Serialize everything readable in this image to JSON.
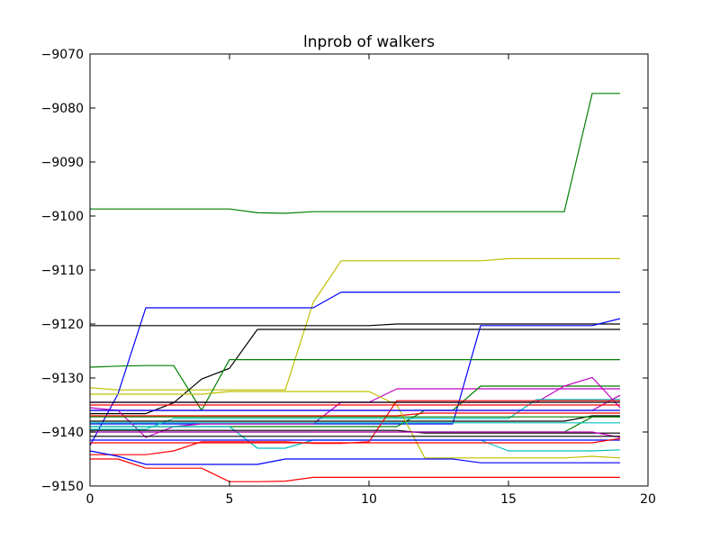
{
  "chart_data": {
    "type": "line",
    "title": "lnprob of walkers",
    "xlabel": "",
    "ylabel": "",
    "xlim": [
      0,
      20
    ],
    "ylim": [
      -9150,
      -9070
    ],
    "xticks": [
      0,
      5,
      10,
      15,
      20
    ],
    "yticks": [
      -9150,
      -9140,
      -9130,
      -9120,
      -9110,
      -9100,
      -9090,
      -9080,
      -9070
    ],
    "xtick_labels": [
      "0",
      "5",
      "10",
      "15",
      "20"
    ],
    "ytick_labels": [
      "−9150",
      "−9140",
      "−9130",
      "−9120",
      "−9110",
      "−9100",
      "−9090",
      "−9080",
      "−9070"
    ],
    "grid": false,
    "legend": "none",
    "x": [
      0,
      1,
      2,
      3,
      4,
      5,
      6,
      7,
      8,
      9,
      10,
      11,
      12,
      13,
      14,
      15,
      16,
      17,
      18,
      19
    ],
    "series": [
      {
        "color": "#008000",
        "values": [
          -9098.7,
          -9098.7,
          -9098.7,
          -9098.7,
          -9098.7,
          -9098.7,
          -9099.4,
          -9099.5,
          -9099.2,
          -9099.2,
          -9099.2,
          -9099.2,
          -9099.2,
          -9099.2,
          -9099.2,
          -9099.2,
          -9099.2,
          -9099.2,
          -9077.3,
          -9077.3
        ]
      },
      {
        "color": "#bfbf00",
        "values": [
          -9131.8,
          -9132.2,
          -9132.2,
          -9132.2,
          -9132.2,
          -9132.2,
          -9132.2,
          -9132.2,
          -9116.0,
          -9108.3,
          -9108.3,
          -9108.3,
          -9108.3,
          -9108.3,
          -9108.3,
          -9107.9,
          -9107.9,
          -9107.9,
          -9107.9,
          -9107.9
        ]
      },
      {
        "color": "#0000ff",
        "values": [
          -9142.5,
          -9133.0,
          -9117.0,
          -9117.0,
          -9117.0,
          -9117.0,
          -9117.0,
          -9117.0,
          -9117.0,
          -9114.1,
          -9114.1,
          -9114.1,
          -9114.1,
          -9114.1,
          -9114.1,
          -9114.1,
          -9114.1,
          -9114.1,
          -9114.1,
          -9114.1
        ]
      },
      {
        "color": "#000000",
        "values": [
          -9120.3,
          -9120.3,
          -9120.3,
          -9120.3,
          -9120.3,
          -9120.3,
          -9120.3,
          -9120.3,
          -9120.3,
          -9120.3,
          -9120.3,
          -9120.0,
          -9120.0,
          -9120.0,
          -9120.0,
          -9120.0,
          -9120.0,
          -9120.0,
          -9120.0,
          -9120.0
        ]
      },
      {
        "color": "#000000",
        "values": [
          -9136.6,
          -9136.6,
          -9136.6,
          -9134.6,
          -9130.2,
          -9128.2,
          -9121.0,
          -9121.0,
          -9121.0,
          -9121.0,
          -9121.0,
          -9121.0,
          -9121.0,
          -9121.0,
          -9121.0,
          -9121.0,
          -9121.0,
          -9121.0,
          -9121.0,
          -9121.0
        ]
      },
      {
        "color": "#0000ff",
        "values": [
          -9138.5,
          -9138.5,
          -9138.5,
          -9138.5,
          -9138.5,
          -9138.5,
          -9138.5,
          -9138.5,
          -9138.5,
          -9138.5,
          -9138.5,
          -9138.5,
          -9138.5,
          -9138.5,
          -9120.3,
          -9120.3,
          -9120.3,
          -9120.3,
          -9120.3,
          -9119.0
        ]
      },
      {
        "color": "#008000",
        "values": [
          -9128.0,
          -9127.8,
          -9127.7,
          -9127.7,
          -9136.0,
          -9126.6,
          -9126.6,
          -9126.6,
          -9126.6,
          -9126.6,
          -9126.6,
          -9126.6,
          -9126.6,
          -9126.6,
          -9126.6,
          -9126.6,
          -9126.6,
          -9126.6,
          -9126.6,
          -9126.6
        ]
      },
      {
        "color": "#bf00bf",
        "values": [
          -9135.5,
          -9136.0,
          -9141.0,
          -9139.0,
          -9138.5,
          -9138.5,
          -9138.5,
          -9138.5,
          -9138.5,
          -9134.5,
          -9134.5,
          -9132.0,
          -9132.0,
          -9132.0,
          -9132.0,
          -9132.0,
          -9132.0,
          -9132.0,
          -9132.0,
          -9132.0
        ]
      },
      {
        "color": "#008000",
        "values": [
          -9139.0,
          -9139.0,
          -9139.0,
          -9139.0,
          -9139.0,
          -9139.0,
          -9139.0,
          -9139.0,
          -9139.0,
          -9139.0,
          -9139.0,
          -9139.0,
          -9136.0,
          -9136.0,
          -9131.5,
          -9131.5,
          -9131.5,
          -9131.5,
          -9131.5,
          -9131.5
        ]
      },
      {
        "color": "#bf00bf",
        "values": [
          -9134.5,
          -9134.5,
          -9134.5,
          -9134.5,
          -9134.5,
          -9134.5,
          -9134.5,
          -9134.5,
          -9134.5,
          -9134.5,
          -9134.5,
          -9134.5,
          -9134.5,
          -9134.5,
          -9134.5,
          -9134.5,
          -9134.5,
          -9131.5,
          -9129.9,
          -9135.5
        ]
      },
      {
        "color": "#00bfbf",
        "values": [
          -9139.5,
          -9139.5,
          -9139.5,
          -9137.5,
          -9137.5,
          -9137.5,
          -9137.5,
          -9137.5,
          -9137.5,
          -9137.5,
          -9137.5,
          -9137.5,
          -9137.5,
          -9137.5,
          -9137.5,
          -9137.5,
          -9134.0,
          -9134.0,
          -9134.0,
          -9134.0
        ]
      },
      {
        "color": "#bf00bf",
        "values": [
          -9136.0,
          -9136.0,
          -9136.0,
          -9136.0,
          -9136.0,
          -9136.0,
          -9136.0,
          -9136.0,
          -9136.0,
          -9136.0,
          -9136.0,
          -9136.0,
          -9136.0,
          -9136.0,
          -9136.0,
          -9136.0,
          -9136.0,
          -9136.0,
          -9136.0,
          -9133.2
        ]
      },
      {
        "color": "#ff0000",
        "values": [
          -9137.0,
          -9137.0,
          -9137.0,
          -9137.0,
          -9137.0,
          -9137.0,
          -9137.0,
          -9137.0,
          -9137.0,
          -9137.0,
          -9137.0,
          -9137.0,
          -9136.5,
          -9136.5,
          -9136.5,
          -9136.5,
          -9136.5,
          -9136.5,
          -9136.5,
          -9136.5
        ]
      },
      {
        "color": "#000000",
        "values": [
          -9138.0,
          -9138.0,
          -9138.0,
          -9138.0,
          -9138.0,
          -9138.0,
          -9138.0,
          -9138.0,
          -9138.0,
          -9138.0,
          -9138.0,
          -9138.0,
          -9138.0,
          -9138.0,
          -9138.0,
          -9138.0,
          -9138.0,
          -9138.0,
          -9137.0,
          -9137.0
        ]
      },
      {
        "color": "#008000",
        "values": [
          -9140.0,
          -9140.0,
          -9140.0,
          -9140.0,
          -9140.0,
          -9140.0,
          -9140.0,
          -9140.0,
          -9140.0,
          -9140.0,
          -9140.0,
          -9140.0,
          -9140.0,
          -9140.0,
          -9140.0,
          -9140.0,
          -9140.0,
          -9140.0,
          -9137.2,
          -9137.2
        ]
      },
      {
        "color": "#bfbf00",
        "values": [
          -9133.0,
          -9133.0,
          -9133.0,
          -9133.0,
          -9133.0,
          -9132.5,
          -9132.5,
          -9132.5,
          -9132.5,
          -9132.5,
          -9132.5,
          -9135.0,
          -9144.8,
          -9144.8,
          -9144.8,
          -9144.8,
          -9144.8,
          -9144.8,
          -9144.5,
          -9144.8
        ]
      },
      {
        "color": "#00bfbf",
        "values": [
          -9139.0,
          -9139.0,
          -9139.0,
          -9139.0,
          -9139.0,
          -9139.0,
          -9143.0,
          -9143.0,
          -9141.5,
          -9141.5,
          -9141.5,
          -9141.5,
          -9141.5,
          -9141.5,
          -9141.5,
          -9143.5,
          -9143.5,
          -9143.5,
          -9143.5,
          -9143.3
        ]
      },
      {
        "color": "#0000ff",
        "values": [
          -9141.5,
          -9141.5,
          -9141.5,
          -9141.5,
          -9141.5,
          -9141.5,
          -9141.5,
          -9141.5,
          -9141.5,
          -9141.5,
          -9141.5,
          -9141.5,
          -9141.5,
          -9141.5,
          -9141.5,
          -9141.5,
          -9141.5,
          -9141.5,
          -9141.5,
          -9141.5
        ]
      },
      {
        "color": "#ff0000",
        "values": [
          -9144.2,
          -9144.2,
          -9144.2,
          -9143.5,
          -9141.8,
          -9141.8,
          -9141.8,
          -9141.8,
          -9142.1,
          -9142.1,
          -9141.8,
          -9134.2,
          -9134.2,
          -9134.2,
          -9134.2,
          -9134.2,
          -9134.2,
          -9134.2,
          -9134.2,
          -9134.2
        ]
      },
      {
        "color": "#0000ff",
        "values": [
          -9143.5,
          -9144.5,
          -9146.0,
          -9146.0,
          -9146.0,
          -9146.0,
          -9146.0,
          -9145.0,
          -9145.0,
          -9145.0,
          -9145.0,
          -9145.0,
          -9145.0,
          -9145.0,
          -9145.7,
          -9145.7,
          -9145.7,
          -9145.7,
          -9145.7,
          -9145.7
        ]
      },
      {
        "color": "#ff0000",
        "values": [
          -9145.0,
          -9145.0,
          -9146.7,
          -9146.7,
          -9146.7,
          -9149.2,
          -9149.2,
          -9149.1,
          -9148.4,
          -9148.4,
          -9148.4,
          -9148.4,
          -9148.4,
          -9148.4,
          -9148.4,
          -9148.4,
          -9148.4,
          -9148.4,
          -9148.4,
          -9148.4
        ]
      },
      {
        "color": "#000000",
        "values": [
          -9134.5,
          -9134.5,
          -9134.5,
          -9134.5,
          -9134.5,
          -9134.5,
          -9134.5,
          -9134.5,
          -9134.5,
          -9134.5,
          -9134.5,
          -9134.5,
          -9134.5,
          -9134.5,
          -9134.5,
          -9134.5,
          -9134.5,
          -9134.5,
          -9134.5,
          -9134.5
        ]
      },
      {
        "color": "#008000",
        "values": [
          -9137.2,
          -9137.2,
          -9137.2,
          -9137.2,
          -9137.2,
          -9137.2,
          -9137.2,
          -9137.2,
          -9137.2,
          -9137.2,
          -9137.2,
          -9137.2,
          -9137.2,
          -9137.2,
          -9137.2,
          -9137.2,
          -9137.2,
          -9137.2,
          -9137.2,
          -9137.2
        ]
      },
      {
        "color": "#000000",
        "values": [
          -9139.7,
          -9139.7,
          -9139.7,
          -9139.7,
          -9139.7,
          -9139.7,
          -9139.7,
          -9139.7,
          -9139.7,
          -9139.7,
          -9139.7,
          -9139.7,
          -9140.2,
          -9140.2,
          -9140.2,
          -9140.2,
          -9140.2,
          -9140.2,
          -9140.2,
          -9140.2
        ]
      },
      {
        "color": "#0000ff",
        "values": [
          -9136.0,
          -9136.0,
          -9136.0,
          -9136.0,
          -9136.0,
          -9136.0,
          -9136.0,
          -9136.0,
          -9136.0,
          -9136.0,
          -9136.0,
          -9136.0,
          -9136.0,
          -9136.0,
          -9136.0,
          -9136.0,
          -9136.0,
          -9136.0,
          -9136.0,
          -9136.0
        ]
      },
      {
        "color": "#ff0000",
        "values": [
          -9135.0,
          -9135.0,
          -9135.0,
          -9135.0,
          -9135.0,
          -9135.0,
          -9135.0,
          -9135.0,
          -9135.0,
          -9135.0,
          -9135.0,
          -9135.0,
          -9135.0,
          -9135.0,
          -9135.0,
          -9135.0,
          -9135.0,
          -9135.0,
          -9135.0,
          -9135.0
        ]
      },
      {
        "color": "#00bfbf",
        "values": [
          -9138.3,
          -9138.3,
          -9138.3,
          -9138.3,
          -9138.3,
          -9138.3,
          -9138.3,
          -9138.3,
          -9138.3,
          -9138.3,
          -9138.3,
          -9138.3,
          -9138.3,
          -9138.3,
          -9138.3,
          -9138.3,
          -9138.3,
          -9138.3,
          -9138.3,
          -9138.3
        ]
      },
      {
        "color": "#bf00bf",
        "values": [
          -9140.0,
          -9140.0,
          -9140.0,
          -9140.0,
          -9140.0,
          -9140.0,
          -9140.0,
          -9140.0,
          -9140.0,
          -9140.0,
          -9140.0,
          -9140.0,
          -9140.0,
          -9140.0,
          -9140.0,
          -9140.0,
          -9140.0,
          -9140.0,
          -9140.0,
          -9141.0
        ]
      },
      {
        "color": "#ff0000",
        "values": [
          -9142.0,
          -9142.0,
          -9142.0,
          -9142.0,
          -9142.0,
          -9142.0,
          -9142.0,
          -9142.0,
          -9142.0,
          -9142.0,
          -9142.0,
          -9142.0,
          -9142.0,
          -9142.0,
          -9142.0,
          -9142.0,
          -9142.0,
          -9142.0,
          -9142.0,
          -9141.2
        ]
      },
      {
        "color": "#000000",
        "values": [
          -9140.8,
          -9140.8,
          -9140.8,
          -9140.8,
          -9140.8,
          -9140.8,
          -9140.8,
          -9140.8,
          -9140.8,
          -9140.8,
          -9140.8,
          -9140.8,
          -9140.8,
          -9140.8,
          -9140.8,
          -9140.8,
          -9140.8,
          -9140.8,
          -9140.8,
          -9140.8
        ]
      }
    ]
  }
}
